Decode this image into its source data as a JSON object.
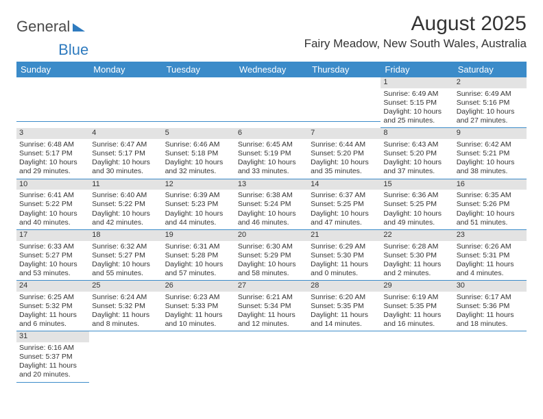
{
  "logo": {
    "text_a": "General",
    "text_b": "Blue"
  },
  "title": "August 2025",
  "location": "Fairy Meadow, New South Wales, Australia",
  "headers": [
    "Sunday",
    "Monday",
    "Tuesday",
    "Wednesday",
    "Thursday",
    "Friday",
    "Saturday"
  ],
  "colors": {
    "header_bg": "#3b8bc9",
    "header_fg": "#ffffff",
    "daynum_bg": "#e3e3e3",
    "row_divider": "#3b8bc9",
    "logo_blue": "#2f7bbf"
  },
  "weeks": [
    [
      null,
      null,
      null,
      null,
      null,
      {
        "n": "1",
        "sr": "Sunrise: 6:49 AM",
        "ss": "Sunset: 5:15 PM",
        "d1": "Daylight: 10 hours",
        "d2": "and 25 minutes."
      },
      {
        "n": "2",
        "sr": "Sunrise: 6:49 AM",
        "ss": "Sunset: 5:16 PM",
        "d1": "Daylight: 10 hours",
        "d2": "and 27 minutes."
      }
    ],
    [
      {
        "n": "3",
        "sr": "Sunrise: 6:48 AM",
        "ss": "Sunset: 5:17 PM",
        "d1": "Daylight: 10 hours",
        "d2": "and 29 minutes."
      },
      {
        "n": "4",
        "sr": "Sunrise: 6:47 AM",
        "ss": "Sunset: 5:17 PM",
        "d1": "Daylight: 10 hours",
        "d2": "and 30 minutes."
      },
      {
        "n": "5",
        "sr": "Sunrise: 6:46 AM",
        "ss": "Sunset: 5:18 PM",
        "d1": "Daylight: 10 hours",
        "d2": "and 32 minutes."
      },
      {
        "n": "6",
        "sr": "Sunrise: 6:45 AM",
        "ss": "Sunset: 5:19 PM",
        "d1": "Daylight: 10 hours",
        "d2": "and 33 minutes."
      },
      {
        "n": "7",
        "sr": "Sunrise: 6:44 AM",
        "ss": "Sunset: 5:20 PM",
        "d1": "Daylight: 10 hours",
        "d2": "and 35 minutes."
      },
      {
        "n": "8",
        "sr": "Sunrise: 6:43 AM",
        "ss": "Sunset: 5:20 PM",
        "d1": "Daylight: 10 hours",
        "d2": "and 37 minutes."
      },
      {
        "n": "9",
        "sr": "Sunrise: 6:42 AM",
        "ss": "Sunset: 5:21 PM",
        "d1": "Daylight: 10 hours",
        "d2": "and 38 minutes."
      }
    ],
    [
      {
        "n": "10",
        "sr": "Sunrise: 6:41 AM",
        "ss": "Sunset: 5:22 PM",
        "d1": "Daylight: 10 hours",
        "d2": "and 40 minutes."
      },
      {
        "n": "11",
        "sr": "Sunrise: 6:40 AM",
        "ss": "Sunset: 5:22 PM",
        "d1": "Daylight: 10 hours",
        "d2": "and 42 minutes."
      },
      {
        "n": "12",
        "sr": "Sunrise: 6:39 AM",
        "ss": "Sunset: 5:23 PM",
        "d1": "Daylight: 10 hours",
        "d2": "and 44 minutes."
      },
      {
        "n": "13",
        "sr": "Sunrise: 6:38 AM",
        "ss": "Sunset: 5:24 PM",
        "d1": "Daylight: 10 hours",
        "d2": "and 46 minutes."
      },
      {
        "n": "14",
        "sr": "Sunrise: 6:37 AM",
        "ss": "Sunset: 5:25 PM",
        "d1": "Daylight: 10 hours",
        "d2": "and 47 minutes."
      },
      {
        "n": "15",
        "sr": "Sunrise: 6:36 AM",
        "ss": "Sunset: 5:25 PM",
        "d1": "Daylight: 10 hours",
        "d2": "and 49 minutes."
      },
      {
        "n": "16",
        "sr": "Sunrise: 6:35 AM",
        "ss": "Sunset: 5:26 PM",
        "d1": "Daylight: 10 hours",
        "d2": "and 51 minutes."
      }
    ],
    [
      {
        "n": "17",
        "sr": "Sunrise: 6:33 AM",
        "ss": "Sunset: 5:27 PM",
        "d1": "Daylight: 10 hours",
        "d2": "and 53 minutes."
      },
      {
        "n": "18",
        "sr": "Sunrise: 6:32 AM",
        "ss": "Sunset: 5:27 PM",
        "d1": "Daylight: 10 hours",
        "d2": "and 55 minutes."
      },
      {
        "n": "19",
        "sr": "Sunrise: 6:31 AM",
        "ss": "Sunset: 5:28 PM",
        "d1": "Daylight: 10 hours",
        "d2": "and 57 minutes."
      },
      {
        "n": "20",
        "sr": "Sunrise: 6:30 AM",
        "ss": "Sunset: 5:29 PM",
        "d1": "Daylight: 10 hours",
        "d2": "and 58 minutes."
      },
      {
        "n": "21",
        "sr": "Sunrise: 6:29 AM",
        "ss": "Sunset: 5:30 PM",
        "d1": "Daylight: 11 hours",
        "d2": "and 0 minutes."
      },
      {
        "n": "22",
        "sr": "Sunrise: 6:28 AM",
        "ss": "Sunset: 5:30 PM",
        "d1": "Daylight: 11 hours",
        "d2": "and 2 minutes."
      },
      {
        "n": "23",
        "sr": "Sunrise: 6:26 AM",
        "ss": "Sunset: 5:31 PM",
        "d1": "Daylight: 11 hours",
        "d2": "and 4 minutes."
      }
    ],
    [
      {
        "n": "24",
        "sr": "Sunrise: 6:25 AM",
        "ss": "Sunset: 5:32 PM",
        "d1": "Daylight: 11 hours",
        "d2": "and 6 minutes."
      },
      {
        "n": "25",
        "sr": "Sunrise: 6:24 AM",
        "ss": "Sunset: 5:32 PM",
        "d1": "Daylight: 11 hours",
        "d2": "and 8 minutes."
      },
      {
        "n": "26",
        "sr": "Sunrise: 6:23 AM",
        "ss": "Sunset: 5:33 PM",
        "d1": "Daylight: 11 hours",
        "d2": "and 10 minutes."
      },
      {
        "n": "27",
        "sr": "Sunrise: 6:21 AM",
        "ss": "Sunset: 5:34 PM",
        "d1": "Daylight: 11 hours",
        "d2": "and 12 minutes."
      },
      {
        "n": "28",
        "sr": "Sunrise: 6:20 AM",
        "ss": "Sunset: 5:35 PM",
        "d1": "Daylight: 11 hours",
        "d2": "and 14 minutes."
      },
      {
        "n": "29",
        "sr": "Sunrise: 6:19 AM",
        "ss": "Sunset: 5:35 PM",
        "d1": "Daylight: 11 hours",
        "d2": "and 16 minutes."
      },
      {
        "n": "30",
        "sr": "Sunrise: 6:17 AM",
        "ss": "Sunset: 5:36 PM",
        "d1": "Daylight: 11 hours",
        "d2": "and 18 minutes."
      }
    ],
    [
      {
        "n": "31",
        "sr": "Sunrise: 6:16 AM",
        "ss": "Sunset: 5:37 PM",
        "d1": "Daylight: 11 hours",
        "d2": "and 20 minutes."
      },
      null,
      null,
      null,
      null,
      null,
      null
    ]
  ]
}
